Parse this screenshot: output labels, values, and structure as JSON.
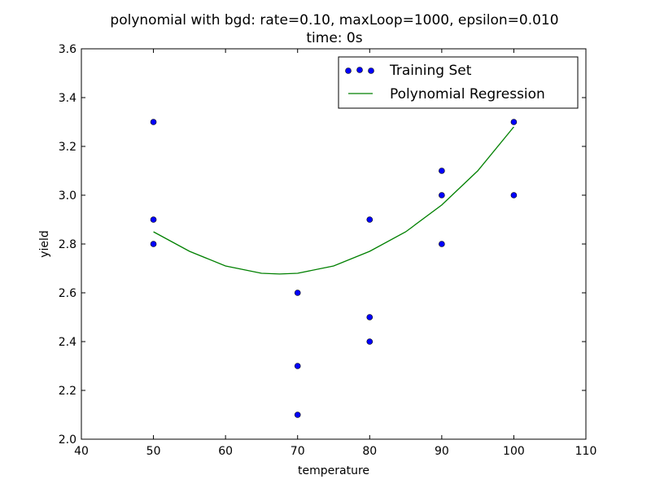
{
  "chart_data": {
    "type": "scatter",
    "title": "polynomial with bgd: rate=0.10, maxLoop=1000, epsilon=0.010",
    "subtitle": "time: 0s",
    "xlabel": "temperature",
    "ylabel": "yield",
    "xlim": [
      40,
      110
    ],
    "ylim": [
      2.0,
      3.6
    ],
    "x_ticks": [
      "40",
      "50",
      "60",
      "70",
      "80",
      "90",
      "100",
      "110"
    ],
    "y_ticks": [
      "2.0",
      "2.2",
      "2.4",
      "2.6",
      "2.8",
      "3.0",
      "3.2",
      "3.4",
      "3.6"
    ],
    "grid": false,
    "legend_position": "top-right",
    "series": [
      {
        "name": "Training Set",
        "type": "scatter",
        "color": "#0000ff",
        "x": [
          50,
          50,
          50,
          70,
          70,
          70,
          80,
          80,
          80,
          90,
          90,
          90,
          100,
          100
        ],
        "y": [
          3.3,
          2.8,
          2.9,
          2.3,
          2.6,
          2.1,
          2.5,
          2.9,
          2.4,
          3.0,
          3.1,
          2.8,
          3.3,
          3.0
        ]
      },
      {
        "name": "Polynomial Regression",
        "type": "line",
        "color": "#008000",
        "x": [
          50,
          55,
          60,
          65,
          67.5,
          70,
          75,
          80,
          85,
          90,
          95,
          100
        ],
        "y": [
          2.85,
          2.77,
          2.71,
          2.68,
          2.677,
          2.68,
          2.71,
          2.77,
          2.85,
          2.96,
          3.1,
          3.28
        ]
      }
    ]
  }
}
